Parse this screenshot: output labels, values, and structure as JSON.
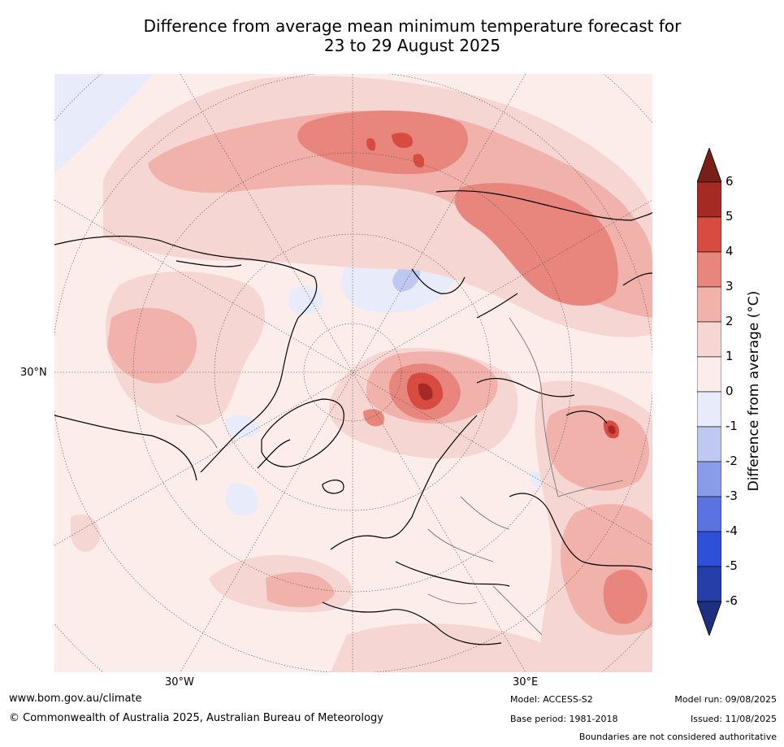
{
  "title": {
    "line1": "Difference from average mean minimum temperature forecast for",
    "line2": "23 to 29 August 2025"
  },
  "map_labels": {
    "lat_30n": "30°N",
    "lon_30w": "30°W",
    "lon_30e": "30°E"
  },
  "colorbar": {
    "title": "Difference from average (°C)",
    "ticks": [
      "6",
      "5",
      "4",
      "3",
      "2",
      "1",
      "0",
      "-1",
      "-2",
      "-3",
      "-4",
      "-5",
      "-6"
    ],
    "colors": [
      "#7a1e18",
      "#a52a25",
      "#d84b40",
      "#e8857c",
      "#f0b2aa",
      "#f6d6d2",
      "#fcecea",
      "#e8ecfa",
      "#bec8f0",
      "#8a9ce8",
      "#5a73e0",
      "#2e4fd8",
      "#263fa8",
      "#1e2f80"
    ]
  },
  "footer": {
    "url": "www.bom.gov.au/climate",
    "copyright": "© Commonwealth of Australia 2025, Australian Bureau of Meteorology",
    "model": "Model: ACCESS-S2",
    "base_period": "Base period: 1981-2018",
    "model_run": "Model run: 09/08/2025",
    "issued": "Issued: 11/08/2025",
    "disclaimer": "Boundaries are not considered authoritative"
  }
}
